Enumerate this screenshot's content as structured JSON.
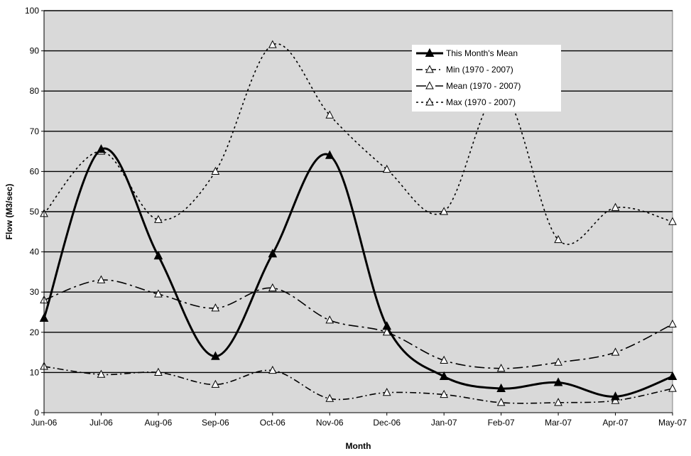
{
  "chart_data": {
    "type": "line",
    "xlabel": "Month",
    "ylabel": "Flow (M3/sec)",
    "categories": [
      "Jun-06",
      "Jul-06",
      "Aug-06",
      "Sep-06",
      "Oct-06",
      "Nov-06",
      "Dec-06",
      "Jan-07",
      "Feb-07",
      "Mar-07",
      "Apr-07",
      "May-07"
    ],
    "ylim": [
      0,
      100
    ],
    "yticks": [
      0,
      10,
      20,
      30,
      40,
      50,
      60,
      70,
      80,
      90,
      100
    ],
    "grid": true,
    "legend_position": "top-right",
    "plot_background": "#d9d9d9",
    "series": [
      {
        "name": "This Month's Mean",
        "style": "solid-thick",
        "marker": "filled-triangle",
        "values": [
          23.5,
          65.5,
          39,
          14,
          39.5,
          64,
          21.5,
          9,
          6,
          7.5,
          4,
          9
        ]
      },
      {
        "name": "Min (1970 - 2007)",
        "style": "dash-dot",
        "marker": "open-triangle",
        "values": [
          11.5,
          9.5,
          10,
          7,
          10.5,
          3.5,
          5,
          4.5,
          2.5,
          2.5,
          3,
          6
        ]
      },
      {
        "name": "Mean (1970 - 2007)",
        "style": "long-dash-dot",
        "marker": "open-triangle",
        "values": [
          28,
          33,
          29.5,
          26,
          31,
          23,
          20,
          13,
          11,
          12.5,
          15,
          22
        ]
      },
      {
        "name": "Max (1970 - 2007)",
        "style": "dotted",
        "marker": "open-triangle",
        "values": [
          49.5,
          65,
          48,
          60,
          91.5,
          74,
          60.5,
          50,
          80,
          43,
          51,
          47.5
        ]
      }
    ]
  }
}
